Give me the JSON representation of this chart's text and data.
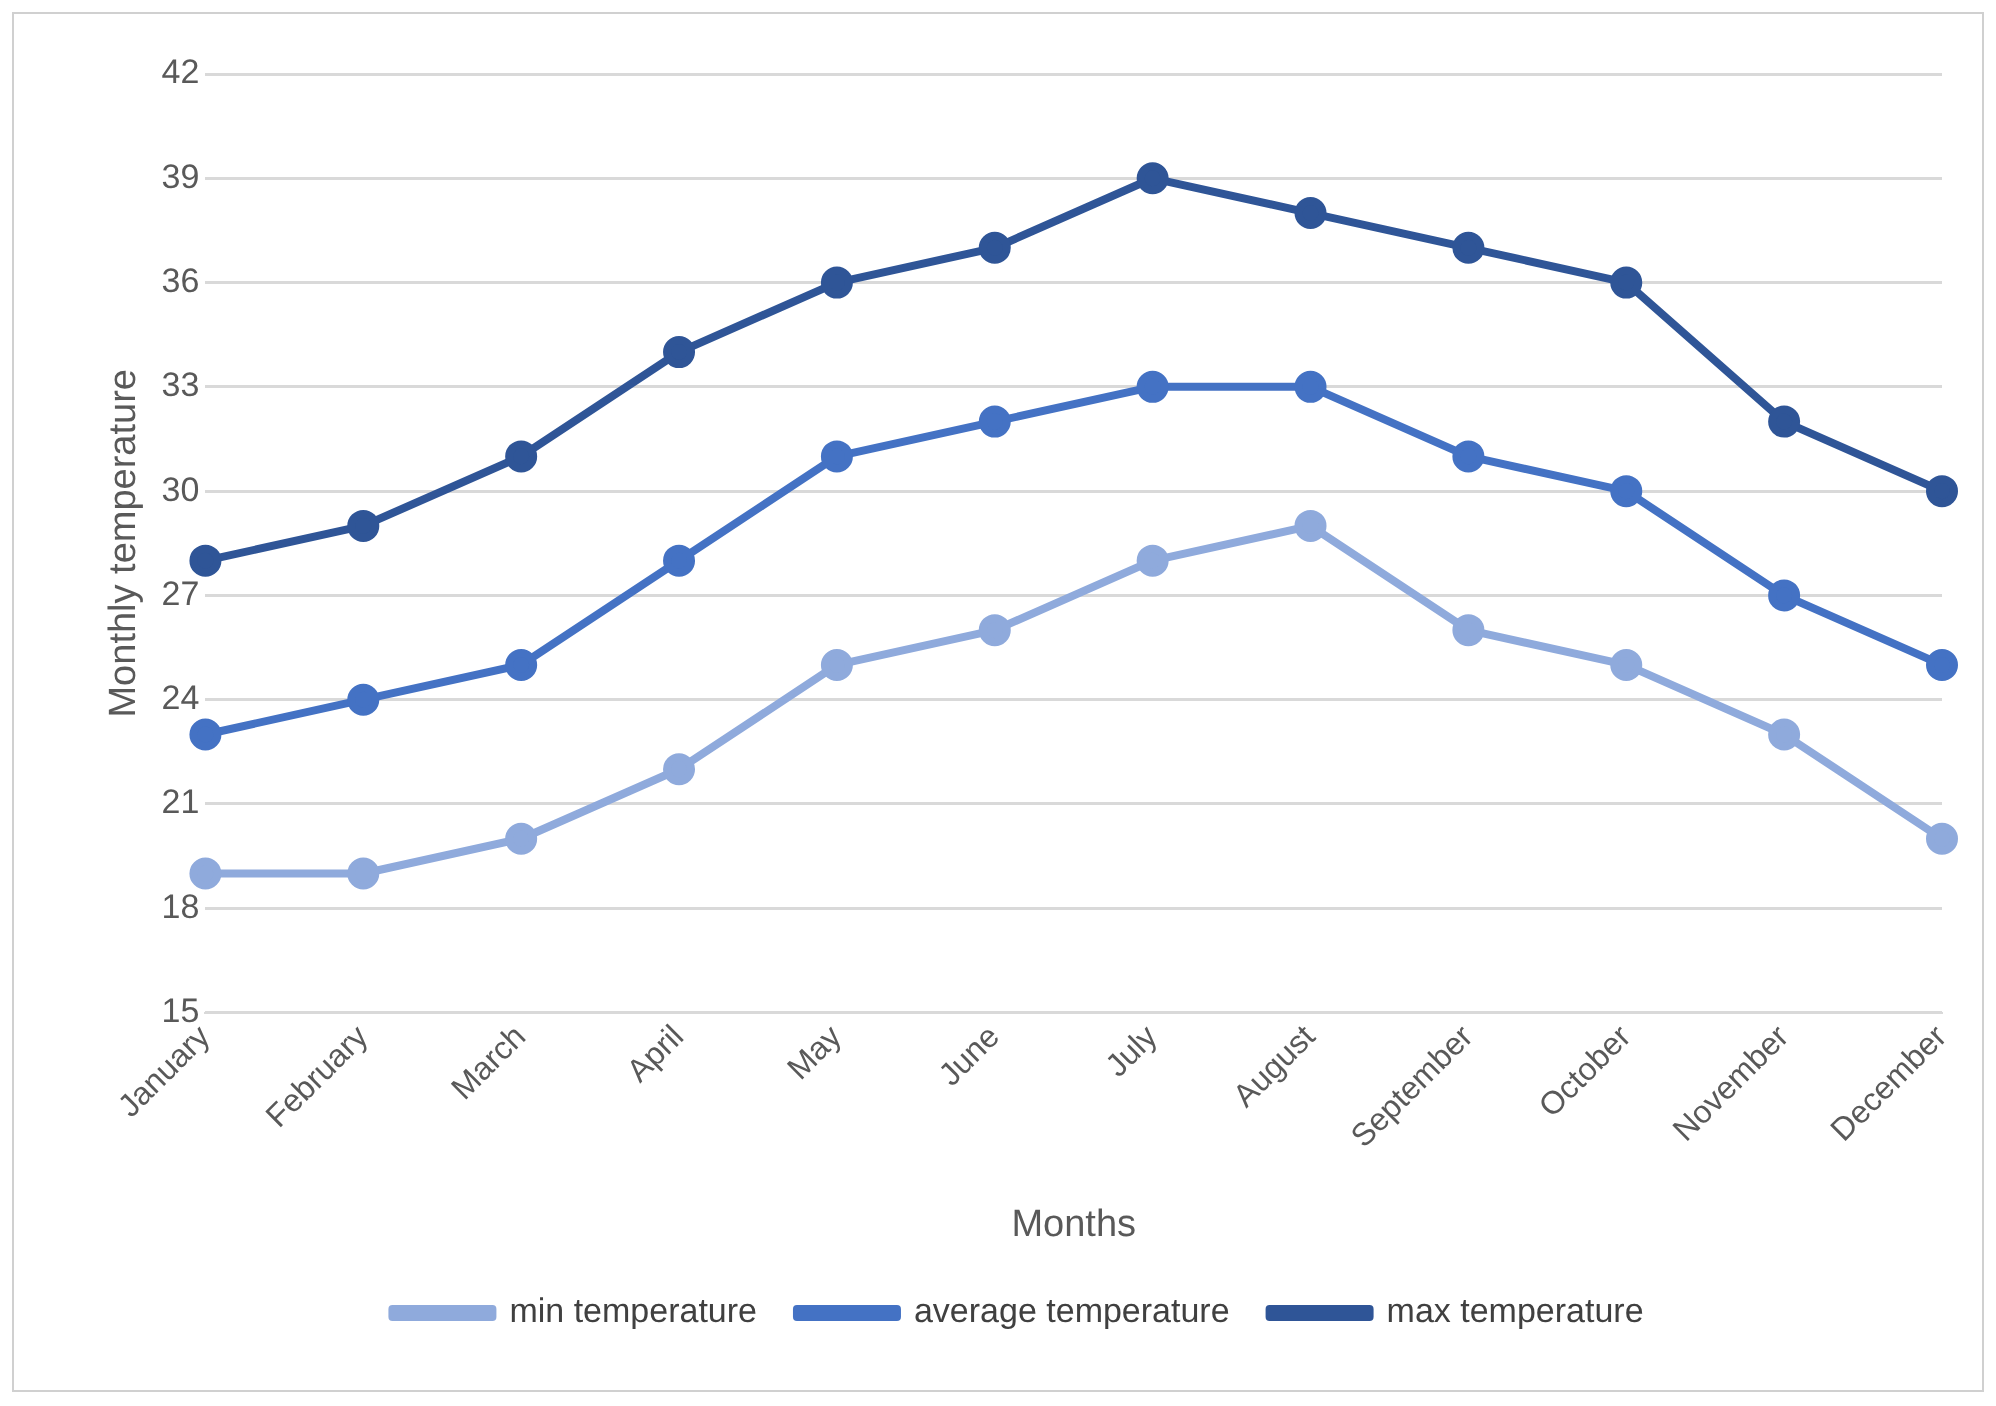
{
  "chart_data": {
    "type": "line",
    "xlabel": "Months",
    "ylabel": "Monthly temperature",
    "categories": [
      "January",
      "February",
      "March",
      "April",
      "May",
      "June",
      "July",
      "August",
      "September",
      "October",
      "November",
      "December"
    ],
    "series": [
      {
        "name": "min temperature",
        "color": "#8faadc",
        "values": [
          19,
          19,
          20,
          22,
          25,
          26,
          28,
          29,
          26,
          25,
          23,
          20
        ]
      },
      {
        "name": "average temperature",
        "color": "#4472c4",
        "values": [
          23,
          24,
          25,
          28,
          31,
          32,
          33,
          33,
          31,
          30,
          27,
          25
        ]
      },
      {
        "name": "max temperature",
        "color": "#2f5597",
        "values": [
          28,
          29,
          31,
          34,
          36,
          37,
          39,
          38,
          37,
          36,
          32,
          30
        ]
      }
    ],
    "ylim": [
      15,
      42
    ],
    "yticks": [
      15,
      18,
      21,
      24,
      27,
      30,
      33,
      36,
      39,
      42
    ],
    "grid": "y",
    "legend": "bottom",
    "marker": "circle",
    "line_style": "solid"
  }
}
